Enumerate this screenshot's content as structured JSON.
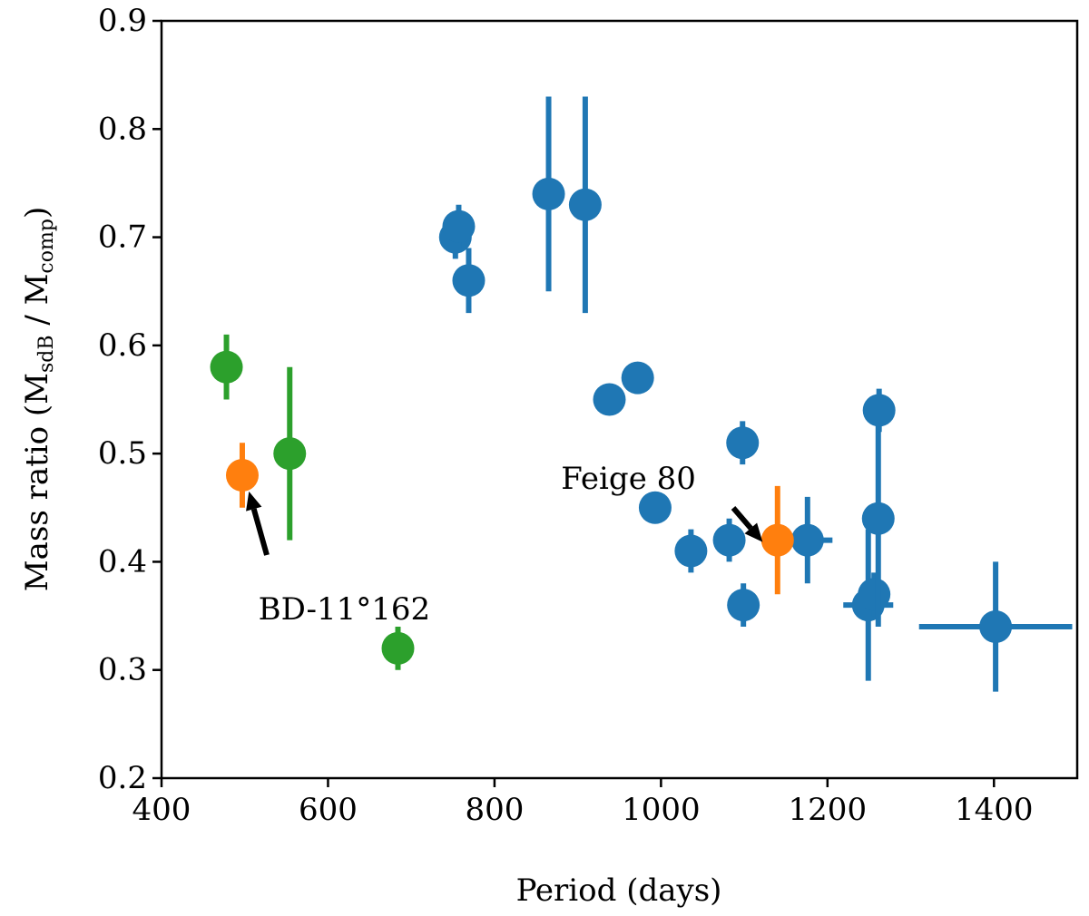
{
  "chart_data": {
    "type": "scatter",
    "title": "",
    "xlabel": "Period (days)",
    "ylabel": {
      "prefix": "Mass ratio (M",
      "sub1": "sdB",
      "mid": " / M",
      "sub2": "comp",
      "suffix": ")"
    },
    "xlim": [
      400,
      1500
    ],
    "ylim": [
      0.2,
      0.9
    ],
    "xticks": [
      400,
      600,
      800,
      1000,
      1200,
      1400
    ],
    "yticks": [
      0.2,
      0.3,
      0.4,
      0.5,
      0.6,
      0.7,
      0.8,
      0.9
    ],
    "xtick_labels": [
      "400",
      "600",
      "800",
      "1000",
      "1200",
      "1400"
    ],
    "ytick_labels": [
      "0.2",
      "0.3",
      "0.4",
      "0.5",
      "0.6",
      "0.7",
      "0.8",
      "0.9"
    ],
    "grid": false,
    "series": [
      {
        "name": "blue",
        "color": "#1f77b4",
        "points": [
          {
            "x": 753,
            "y": 0.7,
            "yerr": 0.02,
            "xerr": 0
          },
          {
            "x": 757,
            "y": 0.71,
            "yerr": 0.02,
            "xerr": 0
          },
          {
            "x": 769,
            "y": 0.66,
            "yerr": 0.03,
            "xerr": 0
          },
          {
            "x": 865,
            "y": 0.74,
            "yerr": 0.09,
            "xerr": 0
          },
          {
            "x": 909,
            "y": 0.73,
            "yerr": 0.1,
            "xerr": 0
          },
          {
            "x": 938,
            "y": 0.55,
            "yerr": 0,
            "xerr": 0
          },
          {
            "x": 972,
            "y": 0.57,
            "yerr": 0,
            "xerr": 0
          },
          {
            "x": 993,
            "y": 0.45,
            "yerr": 0,
            "xerr": 0
          },
          {
            "x": 1036,
            "y": 0.41,
            "yerr": 0.02,
            "xerr": 0
          },
          {
            "x": 1082,
            "y": 0.42,
            "yerr": 0.02,
            "xerr": 0
          },
          {
            "x": 1098,
            "y": 0.51,
            "yerr": 0.02,
            "xerr": 0
          },
          {
            "x": 1099,
            "y": 0.36,
            "yerr": 0.02,
            "xerr": 0
          },
          {
            "x": 1176,
            "y": 0.42,
            "yerr": 0.04,
            "xerr": 30
          },
          {
            "x": 1249,
            "y": 0.36,
            "yerr": 0.07,
            "xerr": 30
          },
          {
            "x": 1256,
            "y": 0.37,
            "yerr": 0.02,
            "xerr": 0
          },
          {
            "x": 1261,
            "y": 0.44,
            "yerr": 0.1,
            "xerr": 0
          },
          {
            "x": 1262,
            "y": 0.54,
            "yerr": 0.02,
            "xerr": 0
          },
          {
            "x": 1402,
            "y": 0.34,
            "yerr": 0.06,
            "xerr": 92
          }
        ]
      },
      {
        "name": "green",
        "color": "#2ca02c",
        "points": [
          {
            "x": 478,
            "y": 0.58,
            "yerr": 0.03,
            "xerr": 0
          },
          {
            "x": 554,
            "y": 0.5,
            "yerr": 0.08,
            "xerr": 0
          },
          {
            "x": 684,
            "y": 0.32,
            "yerr": 0.02,
            "xerr": 15
          }
        ]
      },
      {
        "name": "orange",
        "color": "#ff7f0e",
        "points": [
          {
            "x": 497,
            "y": 0.48,
            "yerr": 0.03,
            "xerr": 0
          },
          {
            "x": 1140,
            "y": 0.42,
            "yerr": 0.05,
            "xerr": 0
          }
        ]
      }
    ],
    "annotations": [
      {
        "text": "BD-11°162",
        "text_x": 525,
        "text_y": 0.37,
        "target_x": 505,
        "target_y": 0.465
      },
      {
        "text": "Feige 80",
        "text_x": 893,
        "text_y": 0.47,
        "target_x": 1133,
        "target_y": 0.42
      }
    ]
  }
}
